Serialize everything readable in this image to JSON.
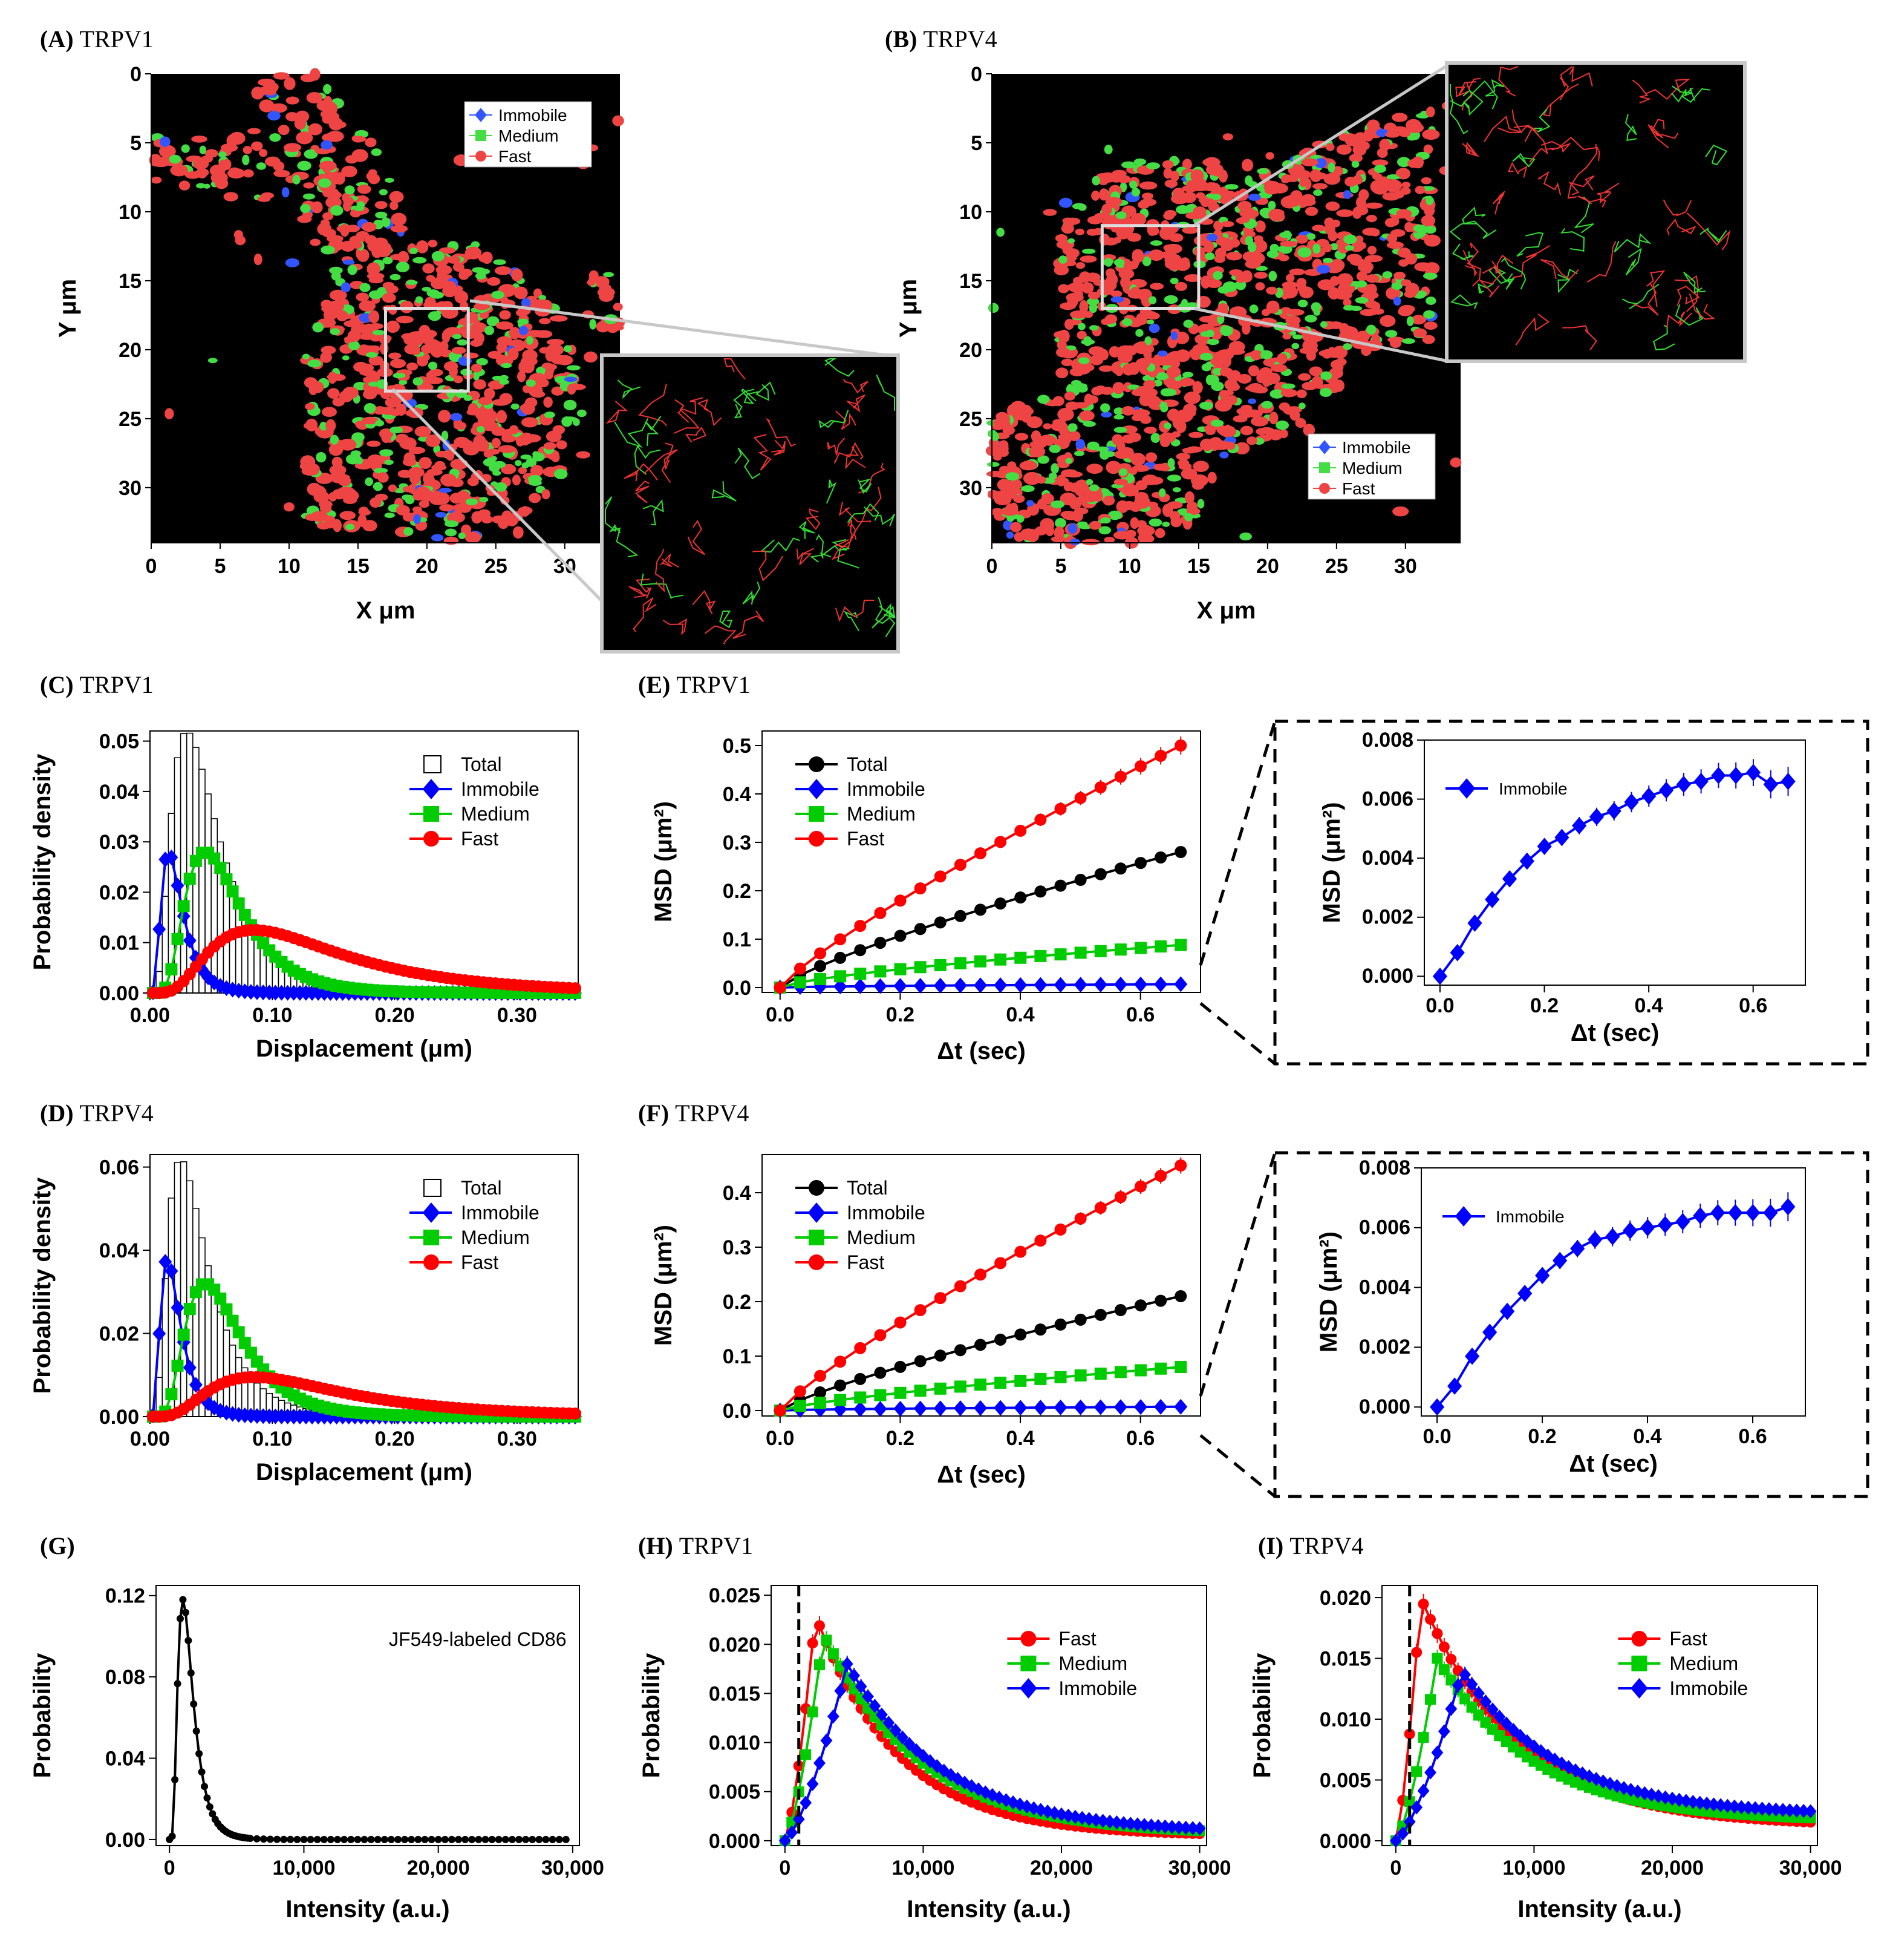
{
  "colors": {
    "immobile": "#0000ff",
    "medium": "#00cc00",
    "fast": "#ff0000",
    "total": "#000000",
    "track_red": "#ee4444",
    "track_green": "#44dd44",
    "track_blue": "#3355ff"
  },
  "panels": {
    "A": {
      "letter": "(A)",
      "name": "TRPV1"
    },
    "B": {
      "letter": "(B)",
      "name": "TRPV4"
    },
    "C": {
      "letter": "(C)",
      "name": "TRPV1"
    },
    "D": {
      "letter": "(D)",
      "name": "TRPV4"
    },
    "E": {
      "letter": "(E)",
      "name": "TRPV1"
    },
    "F": {
      "letter": "(F)",
      "name": "TRPV4"
    },
    "G": {
      "letter": "(G)",
      "name": ""
    },
    "H": {
      "letter": "(H)",
      "name": "TRPV1"
    },
    "I": {
      "letter": "(I)",
      "name": "TRPV4"
    }
  },
  "chart_data": [
    {
      "id": "A",
      "type": "scatter",
      "title": "(A) TRPV1",
      "xlabel": "X μm",
      "ylabel": "Y μm",
      "xticks": [
        "0",
        "5",
        "10",
        "15",
        "20",
        "25",
        "30"
      ],
      "yticks": [
        "0",
        "5",
        "10",
        "15",
        "20",
        "25",
        "30"
      ],
      "xlim": [
        0,
        34
      ],
      "ylim": [
        0,
        34
      ],
      "roi": {
        "x": [
          17,
          23
        ],
        "y": [
          17,
          23
        ]
      },
      "legend": [
        "Immobile",
        "Medium",
        "Fast"
      ]
    },
    {
      "id": "B",
      "type": "scatter",
      "title": "(B) TRPV4",
      "xlabel": "X μm",
      "ylabel": "Y μm",
      "xticks": [
        "0",
        "5",
        "10",
        "15",
        "20",
        "25",
        "30"
      ],
      "yticks": [
        "0",
        "5",
        "10",
        "15",
        "20",
        "25",
        "30"
      ],
      "xlim": [
        0,
        34
      ],
      "ylim": [
        0,
        34
      ],
      "roi": {
        "x": [
          8,
          15
        ],
        "y": [
          11,
          17
        ]
      },
      "legend": [
        "Immobile",
        "Medium",
        "Fast"
      ]
    },
    {
      "id": "C",
      "type": "bar",
      "title": "(C) TRPV1",
      "xlabel": "Displacement (μm)",
      "ylabel": "Probability density",
      "xlim": [
        0,
        0.35
      ],
      "ylim": [
        0,
        0.052
      ],
      "xticks": [
        {
          "v": 0,
          "t": "0.00"
        },
        {
          "v": 0.1,
          "t": "0.10"
        },
        {
          "v": 0.2,
          "t": "0.20"
        },
        {
          "v": 0.3,
          "t": "0.30"
        }
      ],
      "yticks": [
        {
          "v": 0,
          "t": "0.00"
        },
        {
          "v": 0.01,
          "t": "0.01"
        },
        {
          "v": 0.02,
          "t": "0.02"
        },
        {
          "v": 0.03,
          "t": "0.03"
        },
        {
          "v": 0.04,
          "t": "0.04"
        },
        {
          "v": 0.05,
          "t": "0.05"
        }
      ],
      "legend": [
        "Total",
        "Immobile",
        "Medium",
        "Fast"
      ],
      "curves": {
        "total": {
          "peak": 0.052,
          "mode": 0.03
        },
        "immobile": {
          "peak": 0.028,
          "mode": 0.015
        },
        "medium": {
          "peak": 0.028,
          "mode": 0.045
        },
        "fast": {
          "peak": 0.0125,
          "mode": 0.085
        }
      }
    },
    {
      "id": "D",
      "type": "bar",
      "title": "(D) TRPV4",
      "xlabel": "Displacement (μm)",
      "ylabel": "Probability density",
      "xlim": [
        0,
        0.35
      ],
      "ylim": [
        0,
        0.063
      ],
      "xticks": [
        {
          "v": 0,
          "t": "0.00"
        },
        {
          "v": 0.1,
          "t": "0.10"
        },
        {
          "v": 0.2,
          "t": "0.20"
        },
        {
          "v": 0.3,
          "t": "0.30"
        }
      ],
      "yticks": [
        {
          "v": 0,
          "t": "0.00"
        },
        {
          "v": 0.02,
          "t": "0.02"
        },
        {
          "v": 0.04,
          "t": "0.04"
        },
        {
          "v": 0.06,
          "t": "0.06"
        }
      ],
      "legend": [
        "Total",
        "Immobile",
        "Medium",
        "Fast"
      ],
      "curves": {
        "total": {
          "peak": 0.062,
          "mode": 0.025
        },
        "immobile": {
          "peak": 0.038,
          "mode": 0.014
        },
        "medium": {
          "peak": 0.032,
          "mode": 0.045
        },
        "fast": {
          "peak": 0.0095,
          "mode": 0.085
        }
      }
    },
    {
      "id": "E",
      "type": "line",
      "title": "(E) TRPV1",
      "xlabel": "Δt (sec)",
      "ylabel": "MSD (μm²)",
      "xlim": [
        -0.03,
        0.7
      ],
      "ylim": [
        -0.01,
        0.53
      ],
      "xticks": [
        {
          "v": 0,
          "t": "0.0"
        },
        {
          "v": 0.2,
          "t": "0.2"
        },
        {
          "v": 0.4,
          "t": "0.4"
        },
        {
          "v": 0.6,
          "t": "0.6"
        }
      ],
      "yticks": [
        {
          "v": 0,
          "t": "0.0"
        },
        {
          "v": 0.1,
          "t": "0.1"
        },
        {
          "v": 0.2,
          "t": "0.2"
        },
        {
          "v": 0.3,
          "t": "0.3"
        },
        {
          "v": 0.4,
          "t": "0.4"
        },
        {
          "v": 0.5,
          "t": "0.5"
        }
      ],
      "legend": [
        "Total",
        "Immobile",
        "Medium",
        "Fast"
      ],
      "series": [
        {
          "name": "Total",
          "final": 0.28,
          "exp": 0.8
        },
        {
          "name": "Immobile",
          "final": 0.007,
          "exp": 0.6
        },
        {
          "name": "Medium",
          "final": 0.088,
          "exp": 0.7
        },
        {
          "name": "Fast",
          "final": 0.5,
          "exp": 0.85
        }
      ]
    },
    {
      "id": "E_inset",
      "type": "line",
      "xlabel": "Δt (sec)",
      "ylabel": "MSD (μm²)",
      "xlim": [
        -0.03,
        0.7
      ],
      "ylim": [
        -0.0003,
        0.008
      ],
      "xticks": [
        {
          "v": 0,
          "t": "0.0"
        },
        {
          "v": 0.2,
          "t": "0.2"
        },
        {
          "v": 0.4,
          "t": "0.4"
        },
        {
          "v": 0.6,
          "t": "0.6"
        }
      ],
      "yticks": [
        {
          "v": 0,
          "t": "0.000"
        },
        {
          "v": 0.002,
          "t": "0.002"
        },
        {
          "v": 0.004,
          "t": "0.004"
        },
        {
          "v": 0.006,
          "t": "0.006"
        },
        {
          "v": 0.008,
          "t": "0.008"
        }
      ],
      "legend": [
        "Immobile"
      ],
      "values": [
        0,
        0.0008,
        0.0018,
        0.0026,
        0.0033,
        0.0039,
        0.0044,
        0.0047,
        0.0051,
        0.0054,
        0.0056,
        0.0059,
        0.0061,
        0.0063,
        0.0065,
        0.0066,
        0.0068,
        0.0068,
        0.0069,
        0.0065,
        0.0066
      ]
    },
    {
      "id": "F",
      "type": "line",
      "title": "(F) TRPV4",
      "xlabel": "Δt (sec)",
      "ylabel": "MSD (μm²)",
      "xlim": [
        -0.03,
        0.7
      ],
      "ylim": [
        -0.01,
        0.47
      ],
      "xticks": [
        {
          "v": 0,
          "t": "0.0"
        },
        {
          "v": 0.2,
          "t": "0.2"
        },
        {
          "v": 0.4,
          "t": "0.4"
        },
        {
          "v": 0.6,
          "t": "0.6"
        }
      ],
      "yticks": [
        {
          "v": 0,
          "t": "0.0"
        },
        {
          "v": 0.1,
          "t": "0.1"
        },
        {
          "v": 0.2,
          "t": "0.2"
        },
        {
          "v": 0.3,
          "t": "0.3"
        },
        {
          "v": 0.4,
          "t": "0.4"
        }
      ],
      "legend": [
        "Total",
        "Immobile",
        "Medium",
        "Fast"
      ],
      "series": [
        {
          "name": "Total",
          "final": 0.21,
          "exp": 0.8
        },
        {
          "name": "Immobile",
          "final": 0.007,
          "exp": 0.6
        },
        {
          "name": "Medium",
          "final": 0.08,
          "exp": 0.75
        },
        {
          "name": "Fast",
          "final": 0.45,
          "exp": 0.85
        }
      ]
    },
    {
      "id": "F_inset",
      "type": "line",
      "xlabel": "Δt (sec)",
      "ylabel": "MSD (μm²)",
      "xlim": [
        -0.03,
        0.7
      ],
      "ylim": [
        -0.0003,
        0.008
      ],
      "xticks": [
        {
          "v": 0,
          "t": "0.0"
        },
        {
          "v": 0.2,
          "t": "0.2"
        },
        {
          "v": 0.4,
          "t": "0.4"
        },
        {
          "v": 0.6,
          "t": "0.6"
        }
      ],
      "yticks": [
        {
          "v": 0,
          "t": "0.000"
        },
        {
          "v": 0.002,
          "t": "0.002"
        },
        {
          "v": 0.004,
          "t": "0.004"
        },
        {
          "v": 0.006,
          "t": "0.006"
        },
        {
          "v": 0.008,
          "t": "0.008"
        }
      ],
      "legend": [
        "Immobile"
      ],
      "values": [
        0,
        0.0007,
        0.0017,
        0.0025,
        0.0032,
        0.0038,
        0.0044,
        0.0049,
        0.0053,
        0.0056,
        0.0057,
        0.0059,
        0.006,
        0.0061,
        0.0062,
        0.0064,
        0.0065,
        0.0065,
        0.0065,
        0.0065,
        0.0067
      ]
    },
    {
      "id": "G",
      "type": "line",
      "title": "(G)",
      "xlabel": "Intensity (a.u.)",
      "ylabel": "Probability",
      "xlim": [
        -1000,
        30500
      ],
      "ylim": [
        -0.003,
        0.125
      ],
      "xticks": [
        {
          "v": 0,
          "t": "0"
        },
        {
          "v": 10000,
          "t": "10,000"
        },
        {
          "v": 20000,
          "t": "20,000"
        },
        {
          "v": 30000,
          "t": "30,000"
        }
      ],
      "yticks": [
        {
          "v": 0,
          "t": "0.00"
        },
        {
          "v": 0.04,
          "t": "0.04"
        },
        {
          "v": 0.08,
          "t": "0.08"
        },
        {
          "v": 0.12,
          "t": "0.12"
        }
      ],
      "annotation": "JF549-labeled CD86",
      "peak": {
        "x": 1000,
        "y": 0.118
      }
    },
    {
      "id": "H",
      "type": "line",
      "title": "(H) TRPV1",
      "xlabel": "Intensity (a.u.)",
      "ylabel": "Probability",
      "xlim": [
        -1000,
        30500
      ],
      "ylim": [
        -0.0005,
        0.026
      ],
      "xticks": [
        {
          "v": 0,
          "t": "0"
        },
        {
          "v": 10000,
          "t": "10,000"
        },
        {
          "v": 20000,
          "t": "20,000"
        },
        {
          "v": 30000,
          "t": "30,000"
        }
      ],
      "yticks": [
        {
          "v": 0,
          "t": "0.000"
        },
        {
          "v": 0.005,
          "t": "0.005"
        },
        {
          "v": 0.01,
          "t": "0.010"
        },
        {
          "v": 0.015,
          "t": "0.015"
        },
        {
          "v": 0.02,
          "t": "0.020"
        },
        {
          "v": 0.025,
          "t": "0.025"
        }
      ],
      "legend": [
        "Fast",
        "Medium",
        "Immobile"
      ],
      "threshold": 1000,
      "series": [
        {
          "name": "Fast",
          "peak": 0.023,
          "mode": 2200,
          "tail": 0.0005
        },
        {
          "name": "Medium",
          "peak": 0.021,
          "mode": 2800,
          "tail": 0.0006
        },
        {
          "name": "Immobile",
          "peak": 0.018,
          "mode": 4500,
          "tail": 0.0008
        }
      ]
    },
    {
      "id": "I",
      "type": "line",
      "title": "(I) TRPV4",
      "xlabel": "Intensity (a.u.)",
      "ylabel": "Probability",
      "xlim": [
        -1000,
        30500
      ],
      "ylim": [
        -0.0004,
        0.021
      ],
      "xticks": [
        {
          "v": 0,
          "t": "0"
        },
        {
          "v": 10000,
          "t": "10,000"
        },
        {
          "v": 20000,
          "t": "20,000"
        },
        {
          "v": 30000,
          "t": "30,000"
        }
      ],
      "yticks": [
        {
          "v": 0,
          "t": "0.000"
        },
        {
          "v": 0.005,
          "t": "0.005"
        },
        {
          "v": 0.01,
          "t": "0.010"
        },
        {
          "v": 0.015,
          "t": "0.015"
        },
        {
          "v": 0.02,
          "t": "0.020"
        }
      ],
      "legend": [
        "Fast",
        "Medium",
        "Immobile"
      ],
      "threshold": 1000,
      "series": [
        {
          "name": "Fast",
          "peak": 0.02,
          "mode": 1800,
          "tail": 0.0012
        },
        {
          "name": "Medium",
          "peak": 0.015,
          "mode": 3000,
          "tail": 0.0016
        },
        {
          "name": "Immobile",
          "peak": 0.014,
          "mode": 4800,
          "tail": 0.0021
        }
      ]
    }
  ]
}
